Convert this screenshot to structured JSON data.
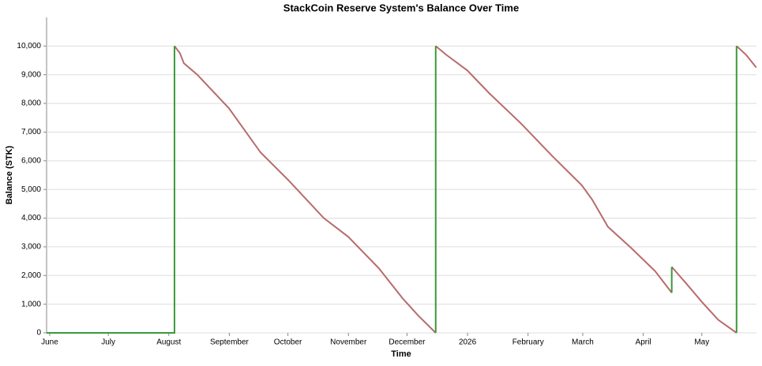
{
  "chart_data": {
    "type": "line",
    "title": "StackCoin Reserve System's Balance Over Time",
    "xlabel": "Time",
    "ylabel": "Balance (STK)",
    "xlim": [
      -1.6,
      362
    ],
    "ylim": [
      0,
      11000
    ],
    "xticks": [
      {
        "value": 0,
        "label": "June"
      },
      {
        "value": 30,
        "label": "July"
      },
      {
        "value": 61,
        "label": "August"
      },
      {
        "value": 92,
        "label": "September"
      },
      {
        "value": 122,
        "label": "October"
      },
      {
        "value": 153,
        "label": "November"
      },
      {
        "value": 183,
        "label": "December"
      },
      {
        "value": 214,
        "label": "2026"
      },
      {
        "value": 245,
        "label": "February"
      },
      {
        "value": 273,
        "label": "March"
      },
      {
        "value": 304,
        "label": "April"
      },
      {
        "value": 334,
        "label": "May"
      }
    ],
    "yticks": [
      0,
      {
        "value": 1000,
        "label": "1,000"
      },
      {
        "value": 2000,
        "label": "2,000"
      },
      {
        "value": 3000,
        "label": "3,000"
      },
      {
        "value": 4000,
        "label": "4,000"
      },
      {
        "value": 5000,
        "label": "5,000"
      },
      {
        "value": 6000,
        "label": "6,000"
      },
      {
        "value": 7000,
        "label": "7,000"
      },
      {
        "value": 8000,
        "label": "8,000"
      },
      {
        "value": 9000,
        "label": "9,000"
      },
      {
        "value": 10000,
        "label": "10,000"
      }
    ],
    "grid": true,
    "series": [
      {
        "color": "#b86b6b",
        "x": [
          63.9,
          66.7,
          68.7,
          75.6,
          91.8,
          108,
          122.6,
          140.4,
          152.9,
          168.6,
          180.8,
          188.8,
          197.7,
          null,
          197.7,
          203,
          213.9,
          225.2,
          241.4,
          257.6,
          272.5,
          277.8,
          285.9,
          298,
          310.1,
          318.6,
          null,
          318.6,
          326.3,
          334.4,
          342.5,
          351.8,
          null,
          351.8,
          356.6,
          361.9
        ],
        "values": [
          10000,
          9750,
          9400,
          9000,
          7830,
          6290,
          5300,
          4000,
          3350,
          2250,
          1200,
          600,
          0,
          null,
          10000,
          9700,
          9150,
          8350,
          7300,
          6150,
          5150,
          4650,
          3700,
          2950,
          2150,
          1400,
          null,
          2300,
          1700,
          1050,
          450,
          0,
          null,
          10000,
          9700,
          9250
        ]
      },
      {
        "color": "#3a9a3a",
        "x": [
          -1.6,
          63.9,
          63.9,
          null,
          197.7,
          197.7,
          null,
          318.6,
          318.6,
          null,
          351.8,
          351.8
        ],
        "values": [
          0,
          0,
          10000,
          null,
          0,
          10000,
          null,
          1400,
          2300,
          null,
          0,
          10000
        ]
      }
    ]
  }
}
